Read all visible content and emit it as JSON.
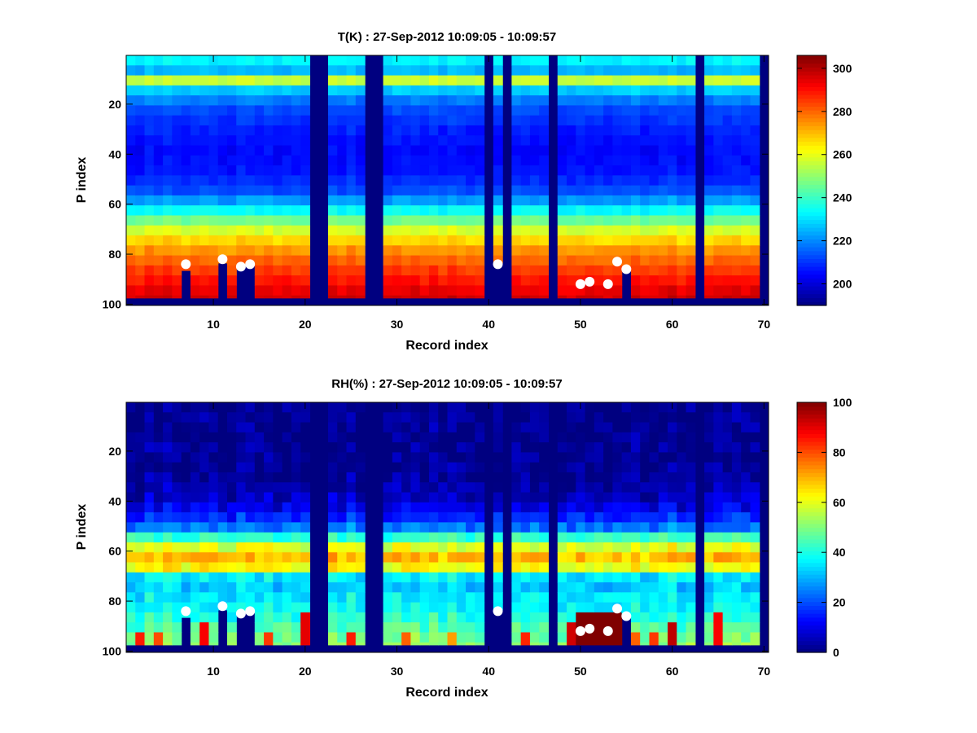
{
  "chart_data": [
    {
      "type": "heatmap",
      "title": "T(K) : 27-Sep-2012 10:09:05 - 10:09:57",
      "xlabel": "Record index",
      "ylabel": "P index",
      "xlim": [
        0.5,
        70.5
      ],
      "ylim": [
        0.5,
        100.5
      ],
      "y_reversed": true,
      "xticks": [
        10,
        20,
        30,
        40,
        50,
        60,
        70
      ],
      "yticks": [
        20,
        40,
        60,
        80,
        100
      ],
      "colormap": "jet",
      "colorbar": {
        "min": 190,
        "max": 306,
        "ticks": [
          200,
          220,
          240,
          260,
          280,
          300
        ]
      },
      "background_value": 190,
      "profile": [
        [
          1,
          235
        ],
        [
          4,
          230
        ],
        [
          6,
          215
        ],
        [
          8,
          256
        ],
        [
          10,
          262
        ],
        [
          12,
          238
        ],
        [
          16,
          222
        ],
        [
          22,
          213
        ],
        [
          30,
          208
        ],
        [
          38,
          205
        ],
        [
          46,
          206
        ],
        [
          54,
          212
        ],
        [
          60,
          226
        ],
        [
          66,
          245
        ],
        [
          72,
          262
        ],
        [
          78,
          274
        ],
        [
          84,
          282
        ],
        [
          90,
          289
        ],
        [
          97,
          297
        ]
      ],
      "valid_level_max": 97,
      "missing_records": [
        21,
        22,
        27,
        28,
        40,
        42,
        47,
        63,
        70
      ],
      "partial_records": [
        {
          "record": 7,
          "last_level": 86
        },
        {
          "record": 11,
          "last_level": 83
        },
        {
          "record": 13,
          "last_level": 84
        },
        {
          "record": 14,
          "last_level": 84
        },
        {
          "record": 41,
          "last_level": 83
        },
        {
          "record": 55,
          "last_level": 85
        }
      ],
      "markers": [
        {
          "record": 7,
          "level": 84
        },
        {
          "record": 11,
          "level": 82
        },
        {
          "record": 13,
          "level": 85
        },
        {
          "record": 14,
          "level": 84
        },
        {
          "record": 41,
          "level": 84
        },
        {
          "record": 50,
          "level": 92
        },
        {
          "record": 51,
          "level": 91
        },
        {
          "record": 53,
          "level": 92
        },
        {
          "record": 54,
          "level": 83
        },
        {
          "record": 55,
          "level": 86
        }
      ]
    },
    {
      "type": "heatmap",
      "title": "RH(%) : 27-Sep-2012 10:09:05 - 10:09:57",
      "xlabel": "Record index",
      "ylabel": "P index",
      "xlim": [
        0.5,
        70.5
      ],
      "ylim": [
        0.5,
        100.5
      ],
      "y_reversed": true,
      "xticks": [
        10,
        20,
        30,
        40,
        50,
        60,
        70
      ],
      "yticks": [
        20,
        40,
        60,
        80,
        100
      ],
      "colormap": "jet",
      "colorbar": {
        "min": 0,
        "max": 100,
        "ticks": [
          0,
          20,
          40,
          60,
          80,
          100
        ]
      },
      "background_value": 0,
      "profile": [
        [
          1,
          1
        ],
        [
          30,
          2
        ],
        [
          38,
          6
        ],
        [
          44,
          12
        ],
        [
          50,
          22
        ],
        [
          54,
          40
        ],
        [
          57,
          56
        ],
        [
          60,
          64
        ],
        [
          63,
          70
        ],
        [
          66,
          66
        ],
        [
          68,
          52
        ],
        [
          70,
          36
        ],
        [
          74,
          32
        ],
        [
          78,
          36
        ],
        [
          84,
          38
        ],
        [
          90,
          45
        ],
        [
          97,
          52
        ]
      ],
      "valid_level_max": 97,
      "missing_records": [
        21,
        22,
        27,
        28,
        40,
        42,
        47,
        63,
        70
      ],
      "partial_records": [
        {
          "record": 7,
          "last_level": 86
        },
        {
          "record": 11,
          "last_level": 83
        },
        {
          "record": 13,
          "last_level": 84
        },
        {
          "record": 14,
          "last_level": 84
        },
        {
          "record": 41,
          "last_level": 83
        },
        {
          "record": 55,
          "last_level": 85
        }
      ],
      "high_cells": [
        {
          "records": [
            50,
            54
          ],
          "levels": [
            84,
            97
          ],
          "value": 100
        },
        {
          "record": 2,
          "levels": [
            91,
            97
          ],
          "value": 85
        },
        {
          "record": 4,
          "levels": [
            91,
            97
          ],
          "value": 80
        },
        {
          "record": 9,
          "levels": [
            90,
            97
          ],
          "value": 88
        },
        {
          "record": 16,
          "levels": [
            91,
            97
          ],
          "value": 82
        },
        {
          "record": 20,
          "levels": [
            83,
            97
          ],
          "value": 90
        },
        {
          "record": 25,
          "levels": [
            91,
            97
          ],
          "value": 85
        },
        {
          "record": 31,
          "levels": [
            92,
            97
          ],
          "value": 78
        },
        {
          "record": 36,
          "levels": [
            92,
            97
          ],
          "value": 72
        },
        {
          "record": 44,
          "levels": [
            91,
            97
          ],
          "value": 84
        },
        {
          "record": 49,
          "levels": [
            88,
            97
          ],
          "value": 92
        },
        {
          "record": 56,
          "levels": [
            91,
            97
          ],
          "value": 78
        },
        {
          "record": 58,
          "levels": [
            92,
            97
          ],
          "value": 82
        },
        {
          "record": 60,
          "levels": [
            90,
            97
          ],
          "value": 94
        },
        {
          "record": 65,
          "levels": [
            83,
            97
          ],
          "value": 88
        }
      ],
      "markers": [
        {
          "record": 7,
          "level": 84
        },
        {
          "record": 11,
          "level": 82
        },
        {
          "record": 13,
          "level": 85
        },
        {
          "record": 14,
          "level": 84
        },
        {
          "record": 41,
          "level": 84
        },
        {
          "record": 50,
          "level": 92
        },
        {
          "record": 51,
          "level": 91
        },
        {
          "record": 53,
          "level": 92
        },
        {
          "record": 54,
          "level": 83
        },
        {
          "record": 55,
          "level": 86
        }
      ]
    }
  ]
}
